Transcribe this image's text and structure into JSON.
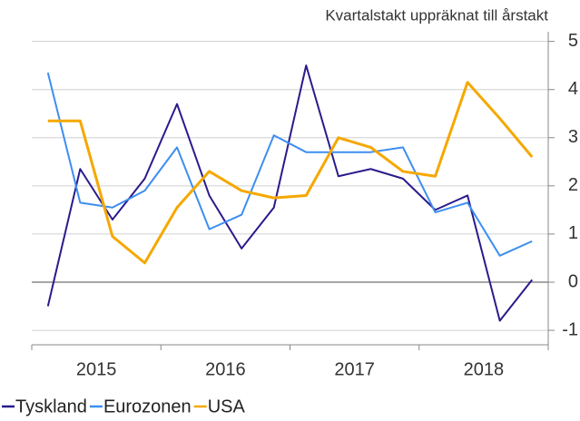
{
  "chart_data": {
    "type": "line",
    "title": "Kvartalstakt uppräknat till årstakt",
    "categories": [
      null,
      null,
      null,
      null,
      null,
      null,
      null,
      null,
      null,
      null,
      null,
      null,
      null,
      null,
      null,
      null
    ],
    "groups": [
      "2015",
      "2016",
      "2017",
      "2018"
    ],
    "series": [
      {
        "name": "Tyskland",
        "color": "#2a1b8c",
        "values": [
          -0.5,
          2.35,
          1.3,
          2.15,
          3.7,
          1.8,
          0.7,
          1.55,
          4.5,
          2.2,
          2.35,
          2.15,
          1.5,
          1.8,
          -0.8,
          0.05
        ]
      },
      {
        "name": "Eurozonen",
        "color": "#3d8ef0",
        "values": [
          4.35,
          1.65,
          1.55,
          1.9,
          2.8,
          1.1,
          1.4,
          3.05,
          2.7,
          2.7,
          2.7,
          2.8,
          1.45,
          1.65,
          0.55,
          0.85
        ]
      },
      {
        "name": "USA",
        "color": "#f5a800",
        "values": [
          3.35,
          3.35,
          0.95,
          0.4,
          1.55,
          2.3,
          1.9,
          1.75,
          1.8,
          3.0,
          2.8,
          2.3,
          2.2,
          4.15,
          3.4,
          2.6
        ]
      }
    ],
    "ylim": [
      -1.3,
      5.2
    ],
    "yticks": [
      -1,
      0,
      1,
      2,
      3,
      4,
      5
    ],
    "grid": true,
    "legend": "bottom"
  }
}
